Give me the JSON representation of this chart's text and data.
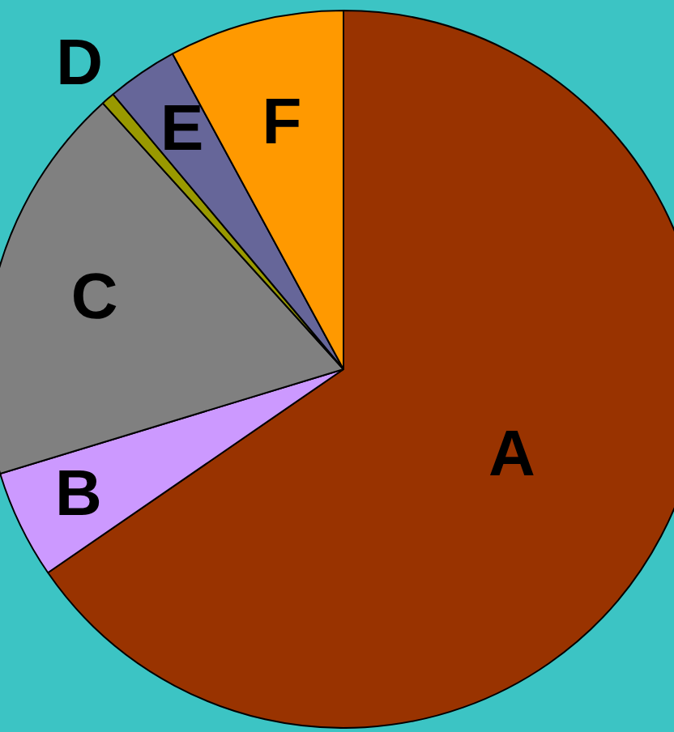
{
  "chart_data": {
    "type": "pie",
    "categories": [
      "A",
      "B",
      "C",
      "D",
      "E",
      "F"
    ],
    "values": [
      65.4,
      4.9,
      18,
      0.6,
      3.2,
      7.9
    ],
    "colors": [
      "#993300",
      "#cc99ff",
      "#808080",
      "#999900",
      "#666699",
      "#ff9900"
    ],
    "legend": false
  }
}
